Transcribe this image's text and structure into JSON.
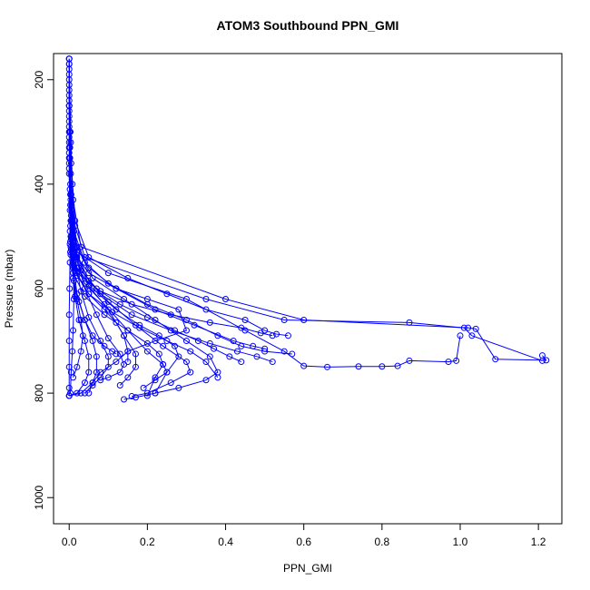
{
  "chart_data": {
    "type": "line",
    "title": "ATOM3 Southbound PPN_GMI",
    "xlabel": "PPN_GMI",
    "ylabel": "Pressure (mbar)",
    "xlim": [
      -0.04,
      1.26
    ],
    "ylim": [
      1050,
      150
    ],
    "y_reversed": true,
    "grid": false,
    "markers": "open-circle",
    "color": "#0000ff",
    "x_ticks": [
      0.0,
      0.2,
      0.4,
      0.6,
      0.8,
      1.0,
      1.2
    ],
    "x_tick_labels": [
      "0.0",
      "0.2",
      "0.4",
      "0.6",
      "0.8",
      "1.0",
      "1.2"
    ],
    "y_ticks": [
      200,
      400,
      600,
      800,
      1000
    ],
    "y_tick_labels": [
      "200",
      "400",
      "600",
      "800",
      "1000"
    ],
    "series": [
      {
        "x": [
          0.0,
          0.0,
          0.002,
          0.004,
          0.006,
          0.01,
          0.02,
          0.05,
          0.12,
          0.2,
          0.28,
          0.3,
          0.22,
          0.15,
          0.12,
          0.08,
          0.06,
          0.03,
          0.0
        ],
        "y": [
          160,
          250,
          350,
          420,
          470,
          510,
          540,
          570,
          600,
          620,
          640,
          680,
          700,
          720,
          740,
          760,
          780,
          800,
          805
        ]
      },
      {
        "x": [
          0.0,
          0.003,
          0.008,
          0.015,
          0.04,
          0.35,
          0.55,
          0.87,
          1.01,
          1.03,
          1.21
        ],
        "y": [
          160,
          300,
          400,
          480,
          540,
          620,
          660,
          665,
          675,
          690,
          738
        ]
      },
      {
        "x": [
          0.0,
          0.004,
          0.01,
          0.03,
          0.4,
          0.6,
          1.02,
          1.04,
          1.09,
          1.22,
          1.21
        ],
        "y": [
          170,
          320,
          430,
          520,
          620,
          660,
          675,
          677,
          735,
          737,
          728
        ]
      },
      {
        "x": [
          0.0,
          0.002,
          0.006,
          0.02,
          0.1,
          0.3,
          0.45,
          0.55,
          0.6,
          0.66,
          0.74,
          0.8,
          0.84,
          0.87,
          0.97,
          0.99,
          1.0
        ],
        "y": [
          180,
          330,
          440,
          530,
          570,
          620,
          680,
          720,
          748,
          750,
          749,
          749,
          748,
          738,
          740,
          738,
          690
        ]
      },
      {
        "x": [
          0.0,
          0.005,
          0.015,
          0.05,
          0.15,
          0.25,
          0.35,
          0.45,
          0.5,
          0.53,
          0.56
        ],
        "y": [
          190,
          360,
          470,
          540,
          580,
          610,
          640,
          660,
          680,
          687,
          690
        ]
      },
      {
        "x": [
          0.0,
          0.004,
          0.012,
          0.04,
          0.1,
          0.2,
          0.3,
          0.38,
          0.44,
          0.5,
          0.57
        ],
        "y": [
          200,
          380,
          490,
          550,
          590,
          630,
          660,
          690,
          710,
          720,
          725
        ]
      },
      {
        "x": [
          0.0,
          0.003,
          0.01,
          0.05,
          0.12,
          0.22,
          0.32,
          0.42,
          0.47,
          0.5
        ],
        "y": [
          210,
          400,
          500,
          560,
          600,
          640,
          670,
          700,
          710,
          715
        ]
      },
      {
        "x": [
          0.0,
          0.002,
          0.008,
          0.03,
          0.08,
          0.16,
          0.26,
          0.36,
          0.43,
          0.48,
          0.52
        ],
        "y": [
          220,
          410,
          505,
          565,
          610,
          650,
          680,
          705,
          720,
          730,
          740
        ]
      },
      {
        "x": [
          0.0,
          0.005,
          0.02,
          0.06,
          0.14,
          0.22,
          0.3,
          0.36,
          0.38,
          0.35,
          0.28,
          0.22,
          0.17,
          0.14
        ],
        "y": [
          230,
          420,
          520,
          580,
          620,
          660,
          700,
          730,
          760,
          775,
          790,
          800,
          808,
          812
        ]
      },
      {
        "x": [
          0.0,
          0.004,
          0.015,
          0.05,
          0.1,
          0.17,
          0.24,
          0.3,
          0.31,
          0.26,
          0.2,
          0.16
        ],
        "y": [
          240,
          430,
          525,
          585,
          625,
          670,
          710,
          740,
          760,
          780,
          800,
          806
        ]
      },
      {
        "x": [
          0.0,
          0.003,
          0.012,
          0.04,
          0.09,
          0.15,
          0.2,
          0.24,
          0.25,
          0.22,
          0.19
        ],
        "y": [
          250,
          440,
          530,
          590,
          630,
          680,
          720,
          745,
          760,
          775,
          790
        ]
      },
      {
        "x": [
          0.0,
          0.006,
          0.02,
          0.05,
          0.1,
          0.14,
          0.17,
          0.17,
          0.15,
          0.13
        ],
        "y": [
          260,
          450,
          535,
          595,
          640,
          690,
          725,
          750,
          770,
          785
        ]
      },
      {
        "x": [
          0.0,
          0.005,
          0.018,
          0.04,
          0.07,
          0.1,
          0.13,
          0.14,
          0.13,
          0.1,
          0.08
        ],
        "y": [
          270,
          460,
          540,
          600,
          650,
          695,
          725,
          745,
          760,
          770,
          775
        ]
      },
      {
        "x": [
          0.0,
          0.004,
          0.015,
          0.03,
          0.05,
          0.08,
          0.1,
          0.1,
          0.08,
          0.06,
          0.04
        ],
        "y": [
          280,
          470,
          545,
          605,
          655,
          700,
          730,
          750,
          770,
          785,
          800
        ]
      },
      {
        "x": [
          0.0,
          0.003,
          0.01,
          0.02,
          0.04,
          0.06,
          0.07,
          0.07,
          0.06,
          0.05
        ],
        "y": [
          290,
          480,
          550,
          610,
          660,
          700,
          730,
          760,
          780,
          800
        ]
      },
      {
        "x": [
          0.0,
          0.002,
          0.008,
          0.015,
          0.025,
          0.04,
          0.05,
          0.05,
          0.04,
          0.02,
          0.0
        ],
        "y": [
          300,
          490,
          555,
          615,
          660,
          700,
          730,
          760,
          780,
          800,
          805
        ]
      },
      {
        "x": [
          0.0,
          0.004,
          0.02,
          0.06,
          0.12,
          0.18,
          0.23,
          0.27,
          0.28,
          0.25,
          0.22
        ],
        "y": [
          310,
          500,
          560,
          600,
          640,
          670,
          690,
          710,
          730,
          760,
          800
        ]
      },
      {
        "x": [
          0.0,
          0.005,
          0.025,
          0.07,
          0.13,
          0.2,
          0.27,
          0.33,
          0.37,
          0.41,
          0.44
        ],
        "y": [
          320,
          505,
          560,
          600,
          630,
          655,
          680,
          700,
          715,
          730,
          740
        ]
      },
      {
        "x": [
          0.0,
          0.003,
          0.015,
          0.05,
          0.11,
          0.18,
          0.25,
          0.31,
          0.35,
          0.38
        ],
        "y": [
          330,
          510,
          565,
          610,
          645,
          675,
          700,
          720,
          740,
          770
        ]
      },
      {
        "x": [
          0.0,
          0.002,
          0.01,
          0.04,
          0.09,
          0.15,
          0.2,
          0.23,
          0.24,
          0.22,
          0.2
        ],
        "y": [
          340,
          515,
          570,
          615,
          650,
          680,
          705,
          725,
          745,
          770,
          805
        ]
      },
      {
        "x": [
          0.0,
          0.004,
          0.02,
          0.08,
          0.16,
          0.26,
          0.36,
          0.44,
          0.49,
          0.52
        ],
        "y": [
          350,
          520,
          570,
          605,
          630,
          650,
          665,
          675,
          685,
          690
        ]
      },
      {
        "x": [
          0.0,
          0.0,
          0.001,
          0.002,
          0.002,
          0.001,
          0.0,
          0.0,
          0.0,
          0.0,
          0.0
        ],
        "y": [
          160,
          250,
          350,
          450,
          550,
          600,
          650,
          700,
          750,
          790,
          805
        ]
      },
      {
        "x": [
          0.0,
          0.001,
          0.003,
          0.006,
          0.01,
          0.012,
          0.01,
          0.008,
          0.005,
          0.003
        ],
        "y": [
          170,
          300,
          420,
          500,
          560,
          620,
          680,
          720,
          760,
          800
        ]
      },
      {
        "x": [
          0.0,
          0.005,
          0.02,
          0.05,
          0.09,
          0.12,
          0.14,
          0.15,
          0.15
        ],
        "y": [
          360,
          525,
          575,
          610,
          640,
          665,
          690,
          720,
          740
        ]
      },
      {
        "x": [
          0.0,
          0.003,
          0.01,
          0.02,
          0.03,
          0.035,
          0.03,
          0.02,
          0.01
        ],
        "y": [
          370,
          530,
          580,
          620,
          660,
          690,
          720,
          750,
          770
        ]
      },
      {
        "x": [
          0.0,
          0.004,
          0.012,
          0.025,
          0.04,
          0.06,
          0.09,
          0.11,
          0.12
        ],
        "y": [
          380,
          535,
          585,
          625,
          660,
          690,
          710,
          720,
          725
        ]
      }
    ]
  }
}
